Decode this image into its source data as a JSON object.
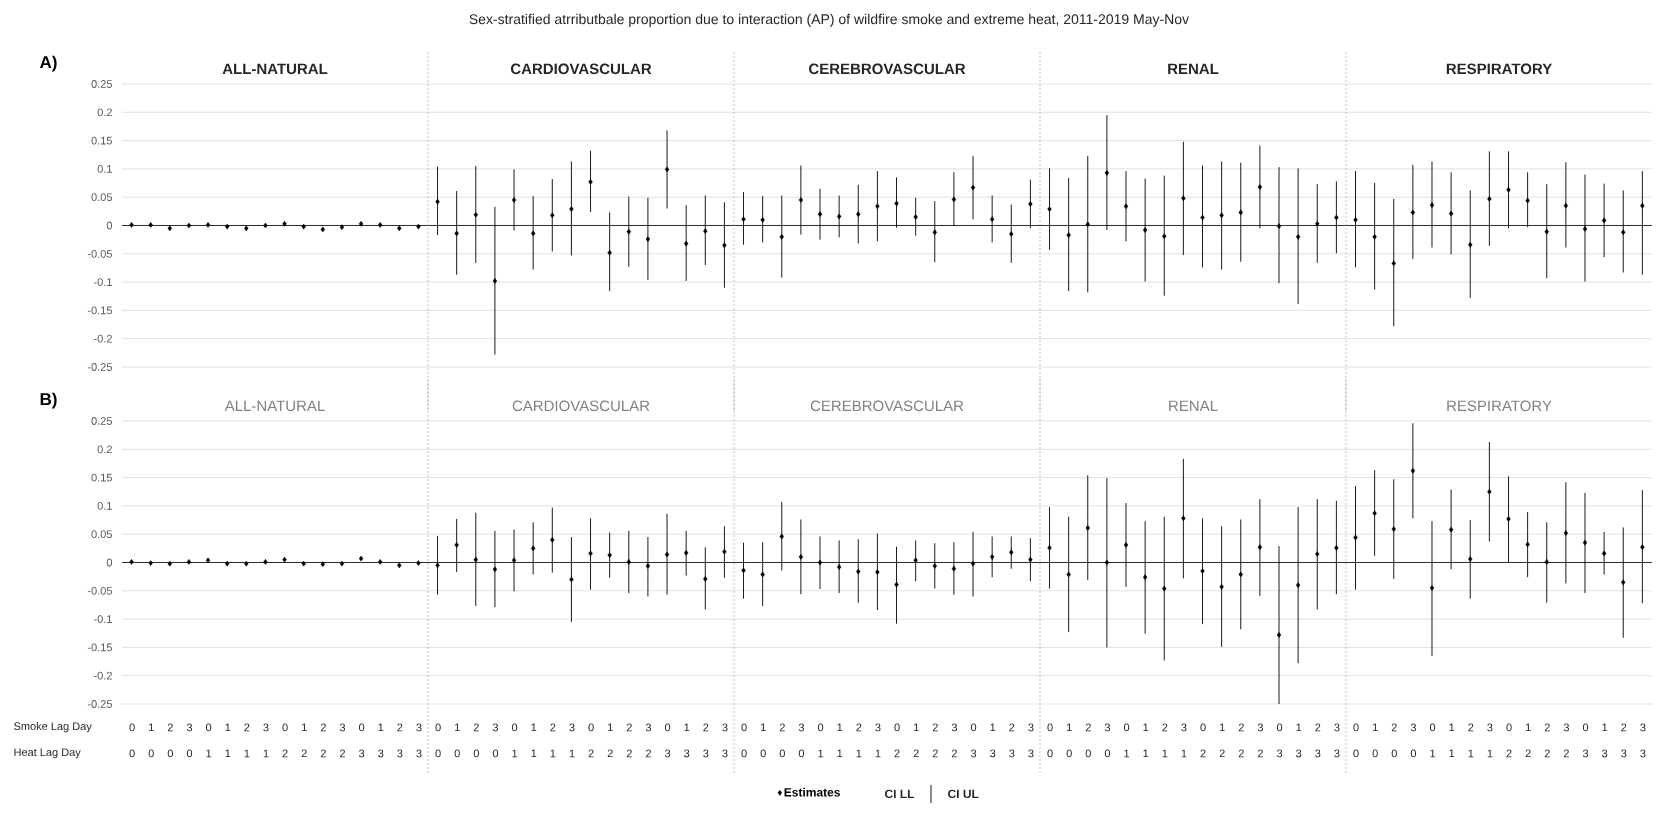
{
  "chart_data": [
    {
      "type": "scatter",
      "annotations": [
        "Sex-stratified atrributbale proportion due to interaction (AP) of wildfire smoke and extreme heat, 2011-2019 May-Nov",
        "A)",
        "ALL-NATURAL",
        "CARDIOVASCULAR",
        "CEREBROVASCULAR",
        "RENAL",
        "RESPIRATORY"
      ],
      "categories": [
        null,
        null,
        null,
        null,
        null,
        null,
        null,
        null,
        null,
        null,
        null,
        null,
        null,
        null,
        null,
        null,
        null,
        null,
        null,
        null,
        null,
        null,
        null,
        null,
        null,
        null,
        null,
        null,
        null,
        null,
        null,
        null,
        null,
        null,
        null,
        null,
        null,
        null,
        null,
        null,
        null,
        null,
        null,
        null,
        null,
        null,
        null,
        null,
        null,
        null,
        null,
        null,
        null,
        null,
        null,
        null,
        null,
        null,
        null,
        null,
        null,
        null,
        null,
        null,
        null,
        null,
        null,
        null,
        null,
        null,
        null,
        null,
        null,
        null,
        null,
        null,
        null,
        null,
        null,
        null
      ],
      "ylim": [
        -0.25,
        0.25
      ],
      "yticks": [
        -0.25,
        -0.2,
        -0.15,
        -0.1,
        -0.05,
        0,
        0.05,
        0.1,
        0.15,
        0.2,
        0.25
      ],
      "grid": "y",
      "marker": "diamond",
      "series": [
        {
          "color": "#000000",
          "values": [
            0.001,
            0.001,
            -0.005,
            0,
            0.001,
            -0.002,
            -0.005,
            0,
            0.003,
            -0.002,
            -0.007,
            -0.003,
            0.003,
            0.001,
            -0.005,
            -0.002,
            0.042,
            -0.014,
            0.019,
            -0.098,
            0.045,
            -0.014,
            0.018,
            0.029,
            0.077,
            -0.048,
            -0.011,
            -0.024,
            0.099,
            -0.032,
            -0.01,
            -0.035,
            0.011,
            0.01,
            -0.02,
            0.045,
            0.02,
            0.016,
            0.02,
            0.034,
            0.039,
            0.015,
            -0.012,
            0.046,
            0.067,
            0.011,
            -0.015,
            0.038,
            0.029,
            -0.017,
            0.002,
            0.093,
            0.034,
            -0.008,
            -0.019,
            0.048,
            0.014,
            0.018,
            0.023,
            0.068,
            -0.001,
            -0.02,
            0.003,
            0.014,
            0.01,
            -0.02,
            -0.067,
            0.023,
            0.036,
            0.021,
            -0.034,
            0.047,
            0.063,
            0.044,
            -0.011,
            0.035,
            -0.006,
            0.009,
            -0.012,
            0.035
          ],
          "errors": [
            null,
            null,
            null,
            null,
            null,
            null,
            null,
            null,
            null,
            null,
            null,
            null,
            null,
            null,
            null,
            null,
            [
              -0.017,
              0.104
            ],
            [
              -0.087,
              0.061
            ],
            [
              -0.066,
              0.105
            ],
            [
              -0.228,
              0.033
            ],
            [
              -0.009,
              0.099
            ],
            [
              -0.078,
              0.052
            ],
            [
              -0.046,
              0.082
            ],
            [
              -0.053,
              0.113
            ],
            [
              0.024,
              0.132
            ],
            [
              -0.116,
              0.023
            ],
            [
              -0.073,
              0.051
            ],
            [
              -0.096,
              0.049
            ],
            [
              0.03,
              0.168
            ],
            [
              -0.098,
              0.036
            ],
            [
              -0.07,
              0.053
            ],
            [
              -0.11,
              0.041
            ],
            [
              -0.034,
              0.059
            ],
            [
              -0.03,
              0.052
            ],
            [
              -0.092,
              0.053
            ],
            [
              -0.016,
              0.106
            ],
            [
              -0.025,
              0.065
            ],
            [
              -0.021,
              0.053
            ],
            [
              -0.032,
              0.072
            ],
            [
              -0.028,
              0.096
            ],
            [
              -0.004,
              0.085
            ],
            [
              -0.018,
              0.049
            ],
            [
              -0.065,
              0.043
            ],
            [
              -0.001,
              0.094
            ],
            [
              0.011,
              0.123
            ],
            [
              -0.03,
              0.053
            ],
            [
              -0.066,
              0.037
            ],
            [
              -0.005,
              0.081
            ],
            [
              -0.043,
              0.101
            ],
            [
              -0.116,
              0.084
            ],
            [
              -0.118,
              0.123
            ],
            [
              -0.008,
              0.195
            ],
            [
              -0.028,
              0.096
            ],
            [
              -0.099,
              0.083
            ],
            [
              -0.124,
              0.088
            ],
            [
              -0.052,
              0.148
            ],
            [
              -0.074,
              0.106
            ],
            [
              -0.078,
              0.113
            ],
            [
              -0.064,
              0.111
            ],
            [
              -0.005,
              0.141
            ],
            [
              -0.102,
              0.103
            ],
            [
              -0.139,
              0.101
            ],
            [
              -0.066,
              0.073
            ],
            [
              -0.049,
              0.078
            ],
            [
              -0.074,
              0.096
            ],
            [
              -0.113,
              0.075
            ],
            [
              -0.178,
              0.047
            ],
            [
              -0.059,
              0.107
            ],
            [
              -0.039,
              0.113
            ],
            [
              -0.051,
              0.094
            ],
            [
              -0.128,
              0.062
            ],
            [
              -0.036,
              0.131
            ],
            [
              -0.005,
              0.131
            ],
            [
              -0.003,
              0.094
            ],
            [
              -0.093,
              0.073
            ],
            [
              -0.039,
              0.112
            ],
            [
              -0.099,
              0.09
            ],
            [
              -0.056,
              0.074
            ],
            [
              -0.083,
              0.062
            ],
            [
              -0.087,
              0.096
            ]
          ]
        }
      ]
    },
    {
      "type": "scatter",
      "annotations": [
        "B)",
        "ALL-NATURAL",
        "CARDIOVASCULAR",
        "CEREBROVASCULAR",
        "RENAL",
        "RESPIRATORY",
        "Smoke Lag Day",
        "Heat Lag Day",
        "CI LL",
        "CI UL"
      ],
      "categories": [
        "0 0",
        "1 0",
        "2 0",
        "3 0",
        "0 1",
        "1 1",
        "2 1",
        "3 1",
        "0 2",
        "1 2",
        "2 2",
        "3 2",
        "0 3",
        "1 3",
        "2 3",
        "3 3",
        "0 0",
        "1 0",
        "2 0",
        "3 0",
        "0 1",
        "1 1",
        "2 1",
        "3 1",
        "0 2",
        "1 2",
        "2 2",
        "3 2",
        "0 3",
        "1 3",
        "2 3",
        "3 3",
        "0 0",
        "1 0",
        "2 0",
        "3 0",
        "0 1",
        "1 1",
        "2 1",
        "3 1",
        "0 2",
        "1 2",
        "2 2",
        "3 2",
        "0 3",
        "1 3",
        "2 3",
        "3 3",
        "0 0",
        "1 0",
        "2 0",
        "3 0",
        "0 1",
        "1 1",
        "2 1",
        "3 1",
        "0 2",
        "1 2",
        "2 2",
        "3 2",
        "0 3",
        "1 3",
        "2 3",
        "3 3",
        "0 0",
        "1 0",
        "2 0",
        "3 0",
        "0 1",
        "1 1",
        "2 1",
        "3 1",
        "0 2",
        "1 2",
        "2 2",
        "3 2",
        "0 3",
        "1 3",
        "2 3",
        "3 3"
      ],
      "ylim": [
        -0.25,
        0.25
      ],
      "yticks": [
        -0.25,
        -0.2,
        -0.15,
        -0.1,
        -0.05,
        0,
        0.05,
        0.1,
        0.15,
        0.2,
        0.25
      ],
      "grid": "y",
      "marker": "diamond",
      "legend": "bottom",
      "series": [
        {
          "name": "Estimates",
          "color": "#000000",
          "values": [
            0.001,
            -0.001,
            -0.002,
            0.001,
            0.004,
            -0.002,
            -0.002,
            0.001,
            0.005,
            -0.002,
            -0.003,
            -0.002,
            0.007,
            0.001,
            -0.005,
            -0.001,
            -0.005,
            0.031,
            0.005,
            -0.012,
            0.004,
            0.025,
            0.04,
            -0.03,
            0.016,
            0.013,
            0.001,
            -0.006,
            0.014,
            0.017,
            -0.029,
            0.019,
            -0.014,
            -0.021,
            0.046,
            0.01,
            0.0,
            -0.008,
            -0.016,
            -0.017,
            -0.039,
            0.004,
            -0.006,
            -0.011,
            -0.002,
            0.01,
            0.018,
            0.005,
            0.026,
            -0.021,
            0.061,
            0.0,
            0.031,
            -0.026,
            -0.046,
            0.078,
            -0.015,
            -0.043,
            -0.021,
            0.027,
            -0.128,
            -0.04,
            0.015,
            0.026,
            0.044,
            0.087,
            0.059,
            0.162,
            -0.045,
            0.058,
            0.006,
            0.125,
            0.077,
            0.032,
            0.001,
            0.052,
            0.035,
            0.016,
            -0.035,
            0.027
          ],
          "errors": [
            null,
            null,
            null,
            null,
            null,
            null,
            null,
            null,
            null,
            null,
            null,
            null,
            null,
            null,
            null,
            null,
            [
              -0.057,
              0.047
            ],
            [
              -0.017,
              0.077
            ],
            [
              -0.077,
              0.088
            ],
            [
              -0.079,
              0.056
            ],
            [
              -0.051,
              0.058
            ],
            [
              -0.021,
              0.071
            ],
            [
              -0.018,
              0.097
            ],
            [
              -0.105,
              0.045
            ],
            [
              -0.048,
              0.078
            ],
            [
              -0.027,
              0.053
            ],
            [
              -0.054,
              0.056
            ],
            [
              -0.06,
              0.045
            ],
            [
              -0.057,
              0.086
            ],
            [
              -0.023,
              0.056
            ],
            [
              -0.083,
              0.027
            ],
            [
              -0.027,
              0.064
            ],
            [
              -0.064,
              0.035
            ],
            [
              -0.077,
              0.036
            ],
            [
              -0.014,
              0.107
            ],
            [
              -0.056,
              0.076
            ],
            [
              -0.047,
              0.046
            ],
            [
              -0.054,
              0.039
            ],
            [
              -0.071,
              0.041
            ],
            [
              -0.084,
              0.051
            ],
            [
              -0.108,
              0.028
            ],
            [
              -0.033,
              0.039
            ],
            [
              -0.046,
              0.034
            ],
            [
              -0.057,
              0.036
            ],
            [
              -0.06,
              0.054
            ],
            [
              -0.026,
              0.046
            ],
            [
              -0.011,
              0.046
            ],
            [
              -0.033,
              0.043
            ],
            [
              -0.046,
              0.098
            ],
            [
              -0.123,
              0.081
            ],
            [
              -0.031,
              0.154
            ],
            [
              -0.15,
              0.149
            ],
            [
              -0.043,
              0.105
            ],
            [
              -0.126,
              0.073
            ],
            [
              -0.173,
              0.081
            ],
            [
              -0.028,
              0.183
            ],
            [
              -0.109,
              0.078
            ],
            [
              -0.149,
              0.064
            ],
            [
              -0.118,
              0.076
            ],
            [
              -0.059,
              0.112
            ],
            [
              -0.25,
              0.029
            ],
            [
              -0.178,
              0.098
            ],
            [
              -0.083,
              0.112
            ],
            [
              -0.056,
              0.109
            ],
            [
              -0.048,
              0.135
            ],
            [
              0.012,
              0.163
            ],
            [
              -0.029,
              0.147
            ],
            [
              0.078,
              0.246
            ],
            [
              -0.165,
              0.073
            ],
            [
              -0.012,
              0.129
            ],
            [
              -0.064,
              0.075
            ],
            [
              0.037,
              0.213
            ],
            [
              0.0,
              0.152
            ],
            [
              -0.026,
              0.089
            ],
            [
              -0.071,
              0.071
            ],
            [
              -0.037,
              0.142
            ],
            [
              -0.054,
              0.123
            ],
            [
              -0.021,
              0.054
            ],
            [
              -0.133,
              0.062
            ],
            [
              -0.072,
              0.128
            ]
          ]
        }
      ]
    }
  ]
}
